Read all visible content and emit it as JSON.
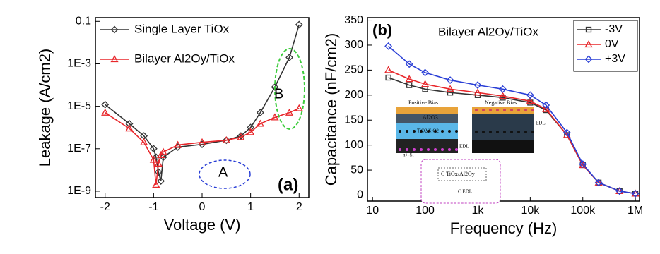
{
  "chart_data": [
    {
      "type": "line",
      "x_label": "Voltage (V)",
      "y_label": "Leakage (A/cm2)",
      "log_y": true,
      "xlim": [
        -2.2,
        2.2
      ],
      "ylim": [
        5e-10,
        0.15
      ],
      "xticks": [
        -2,
        -1,
        0,
        1,
        2
      ],
      "yticks": [
        {
          "value": 1e-09,
          "label": "1E-9"
        },
        {
          "value": 1e-07,
          "label": "1E-7"
        },
        {
          "value": 1e-05,
          "label": "1E-5"
        },
        {
          "value": 0.001,
          "label": "1E-3"
        },
        0.1
      ],
      "x": [
        -2,
        -1.5,
        -1.2,
        -1,
        -0.95,
        -0.9,
        -0.85,
        -0.8,
        -0.5,
        0,
        0.5,
        0.8,
        1,
        1.2,
        1.5,
        1.8,
        2
      ],
      "series": [
        {
          "name": "Single Layer TiOx",
          "color": "#333333",
          "marker": "diamond",
          "values": [
            1.2e-05,
            1.5e-06,
            4e-07,
            1e-07,
            4e-08,
            8e-09,
            3e-09,
            4e-08,
            1.2e-07,
            1.6e-07,
            2.5e-07,
            4e-07,
            1e-06,
            5e-06,
            8e-05,
            0.002,
            0.07
          ]
        },
        {
          "name": "Bilayer Al2Oy/TiOx",
          "color": "#e8262a",
          "marker": "triangle",
          "values": [
            5e-06,
            9e-07,
            2e-07,
            3e-08,
            2e-09,
            2e-08,
            5e-08,
            7e-08,
            1.5e-07,
            2e-07,
            2.5e-07,
            3.5e-07,
            6e-07,
            1.5e-06,
            3e-06,
            5e-06,
            8e-06
          ]
        }
      ],
      "annotations": [
        "A",
        "B",
        "(a)"
      ],
      "legend": "upper left"
    },
    {
      "type": "line",
      "x_label": "Frequency (Hz)",
      "y_label": "Capacitance (nF/cm2)",
      "log_x": true,
      "title": "Bilayer Al2Oy/TiOx",
      "xlim": [
        8,
        1200000
      ],
      "ylim": [
        -12,
        355
      ],
      "xticks": [
        10,
        100,
        {
          "value": 1000,
          "label": "1k"
        },
        {
          "value": 10000,
          "label": "10k"
        },
        {
          "value": 100000,
          "label": "100k"
        },
        {
          "value": 1000000,
          "label": "1M"
        }
      ],
      "yticks": [
        0,
        50,
        100,
        150,
        200,
        250,
        300,
        350
      ],
      "x": [
        20,
        50,
        100,
        300,
        1000,
        3000,
        10000,
        20000,
        50000,
        100000,
        200000,
        500000,
        1000000
      ],
      "series": [
        {
          "name": "-3V",
          "color": "#333333",
          "marker": "square",
          "values": [
            235,
            220,
            212,
            205,
            200,
            195,
            185,
            170,
            120,
            60,
            25,
            8,
            3
          ]
        },
        {
          "name": "0V",
          "color": "#e8262a",
          "marker": "triangle",
          "values": [
            250,
            232,
            222,
            212,
            205,
            198,
            188,
            172,
            120,
            60,
            25,
            8,
            3
          ]
        },
        {
          "name": "+3V",
          "color": "#2a3fd6",
          "marker": "diamond",
          "values": [
            298,
            262,
            245,
            230,
            220,
            212,
            200,
            180,
            125,
            62,
            25,
            8,
            3
          ]
        }
      ],
      "annotations": [
        "(b)"
      ],
      "legend": "upper right",
      "inset_labels": [
        "Positive Bias",
        "Negative Bias",
        "Al2O3",
        "TiO2/SiO2",
        "EDL",
        "EDL",
        "n+-Si",
        "C TiOx/Al2Oy",
        "C EDL"
      ]
    }
  ]
}
